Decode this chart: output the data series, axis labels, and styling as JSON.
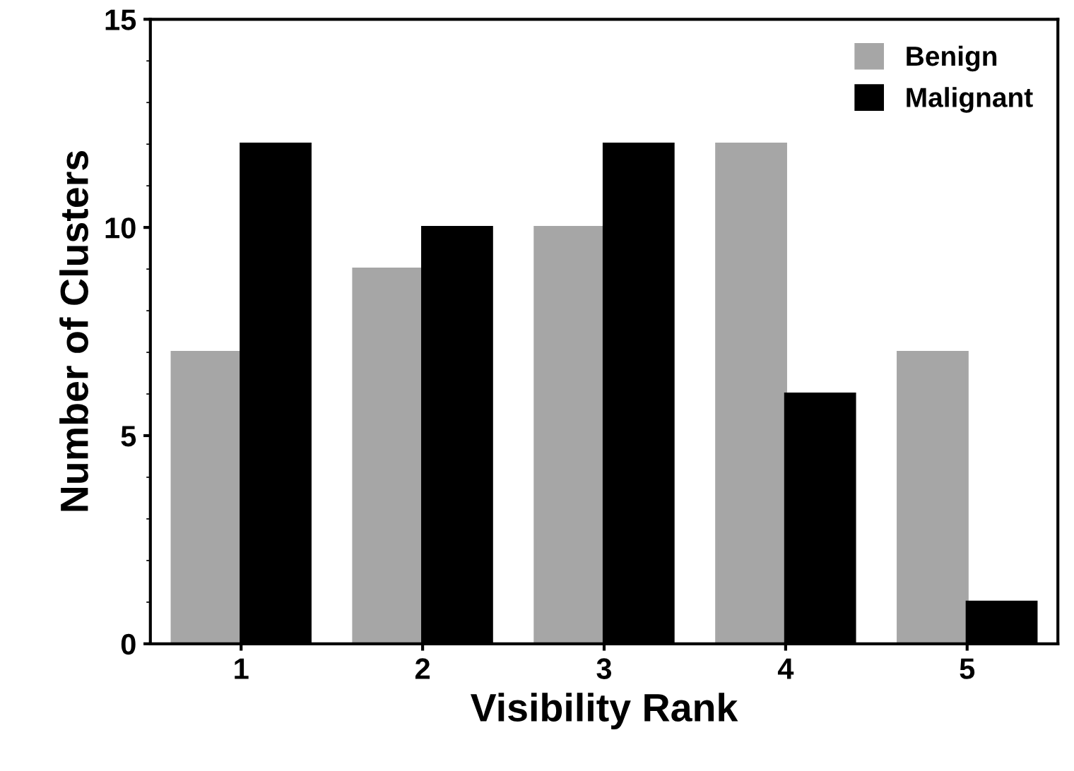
{
  "chart_data": {
    "type": "bar",
    "xlabel": "Visibility Rank",
    "ylabel": "Number of Clusters",
    "categories": [
      "1",
      "2",
      "3",
      "4",
      "5"
    ],
    "series": [
      {
        "name": "Benign",
        "color": "#a6a6a6",
        "values": [
          7,
          9,
          10,
          12,
          7
        ]
      },
      {
        "name": "Malignant",
        "color": "#000000",
        "values": [
          12,
          10,
          12,
          6,
          1
        ]
      }
    ],
    "ylim": [
      0,
      15
    ],
    "yticks": [
      0,
      5,
      10,
      15
    ],
    "grid": false,
    "legend": "top right"
  }
}
